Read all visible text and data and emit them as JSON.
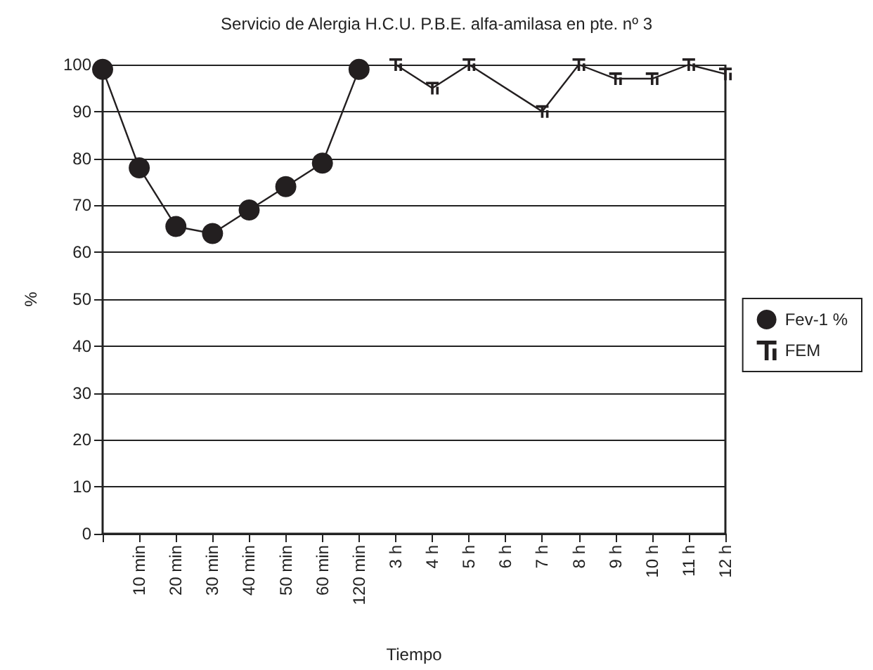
{
  "chart_data": {
    "type": "line",
    "title": "Servicio de Alergia H.C.U. P.B.E. alfa-amilasa en pte. nº 3",
    "xlabel": "Tiempo",
    "ylabel": "%",
    "categories": [
      null,
      "10 min",
      "20 min",
      "30 min",
      "40 min",
      "50 min",
      "60 min",
      "120 min",
      "3 h",
      "4 h",
      "5 h",
      "6 h",
      "7 h",
      "8 h",
      "9 h",
      "10 h",
      "11 h",
      "12 h"
    ],
    "ylim": [
      0,
      100
    ],
    "yticks": [
      0,
      10,
      20,
      30,
      40,
      50,
      60,
      70,
      80,
      90,
      100
    ],
    "grid": "y",
    "legend": "right",
    "series": [
      {
        "name": "Fev-1 %",
        "color": "#231f20",
        "marker": "circle",
        "values": [
          99,
          78,
          65.5,
          64,
          69,
          74,
          79,
          99,
          null,
          null,
          null,
          null,
          null,
          null,
          null,
          null,
          null,
          null
        ]
      },
      {
        "name": "FEM",
        "color": "#231f20",
        "marker": "cross",
        "values": [
          null,
          null,
          null,
          null,
          null,
          null,
          null,
          null,
          100,
          95,
          100,
          null,
          90,
          100,
          97,
          97,
          100,
          98
        ]
      }
    ]
  }
}
